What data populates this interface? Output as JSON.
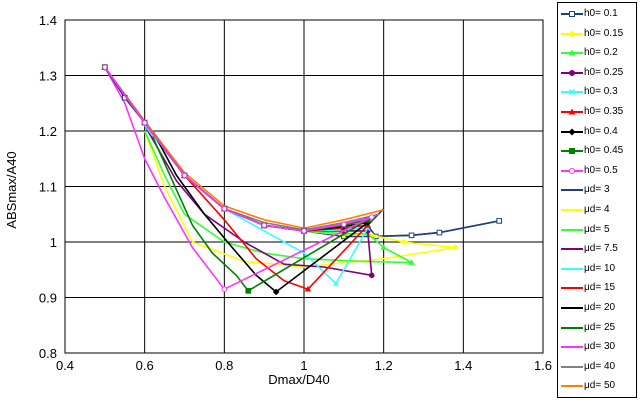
{
  "chart_data": {
    "type": "line",
    "title": "",
    "xlabel": "Dmax/D40",
    "ylabel": "ABSmax/A40",
    "xlim": [
      0.4,
      1.6
    ],
    "ylim": [
      0.8,
      1.4
    ],
    "xticks": [
      0.4,
      0.6,
      0.8,
      1,
      1.2,
      1.4,
      1.6
    ],
    "yticks": [
      0.8,
      0.9,
      1,
      1.1,
      1.2,
      1.3,
      1.4
    ],
    "xtick_labels": [
      "0.4",
      "0.6",
      "0.8",
      "1",
      "1.2",
      "1.4",
      "1.6"
    ],
    "ytick_labels": [
      "0.8",
      "0.9",
      "1",
      "1.1",
      "1.2",
      "1.3",
      "1.4"
    ],
    "grid": true,
    "legend_position": "right",
    "series": [
      {
        "name": "h0= 0.1",
        "color": "#1f3f7f",
        "marker": "square-open",
        "points": [
          [
            0.5,
            1.315
          ],
          [
            0.55,
            1.26
          ],
          [
            0.6,
            1.215
          ],
          [
            0.7,
            1.12
          ],
          [
            0.8,
            1.06
          ],
          [
            0.9,
            1.03
          ],
          [
            1.0,
            1.02
          ],
          [
            1.1,
            1.01
          ],
          [
            1.18,
            1.01
          ],
          [
            1.27,
            1.012
          ],
          [
            1.34,
            1.017
          ],
          [
            1.49,
            1.038
          ]
        ]
      },
      {
        "name": "h0= 0.15",
        "color": "#ffff00",
        "marker": "diamond",
        "points": [
          [
            0.5,
            1.315
          ],
          [
            0.6,
            1.215
          ],
          [
            0.7,
            1.12
          ],
          [
            0.8,
            1.06
          ],
          [
            0.9,
            1.03
          ],
          [
            1.0,
            1.02
          ],
          [
            1.1,
            1.013
          ],
          [
            1.17,
            1.012
          ],
          [
            1.25,
            1.0
          ],
          [
            1.38,
            0.99
          ]
        ]
      },
      {
        "name": "h0= 0.2",
        "color": "#33ff33",
        "marker": "triangle",
        "points": [
          [
            0.5,
            1.315
          ],
          [
            0.6,
            1.215
          ],
          [
            0.7,
            1.12
          ],
          [
            0.8,
            1.06
          ],
          [
            0.9,
            1.03
          ],
          [
            1.0,
            1.02
          ],
          [
            1.1,
            1.015
          ],
          [
            1.16,
            1.015
          ],
          [
            1.2,
            0.99
          ],
          [
            1.27,
            0.963
          ]
        ]
      },
      {
        "name": "h0= 0.25",
        "color": "#800080",
        "marker": "circle",
        "points": [
          [
            0.5,
            1.315
          ],
          [
            0.6,
            1.215
          ],
          [
            0.7,
            1.12
          ],
          [
            0.8,
            1.06
          ],
          [
            0.9,
            1.03
          ],
          [
            1.0,
            1.02
          ],
          [
            1.1,
            1.02
          ],
          [
            1.16,
            1.02
          ],
          [
            1.17,
            0.94
          ]
        ]
      },
      {
        "name": "h0= 0.3",
        "color": "#33ffff",
        "marker": "x",
        "points": [
          [
            0.5,
            1.315
          ],
          [
            0.6,
            1.215
          ],
          [
            0.7,
            1.12
          ],
          [
            0.8,
            1.06
          ],
          [
            0.9,
            1.03
          ],
          [
            1.0,
            1.02
          ],
          [
            1.1,
            1.022
          ],
          [
            1.16,
            1.025
          ],
          [
            1.08,
            0.925
          ]
        ]
      },
      {
        "name": "h0= 0.35",
        "color": "#ff0000",
        "marker": "triangle",
        "points": [
          [
            0.5,
            1.315
          ],
          [
            0.6,
            1.215
          ],
          [
            0.7,
            1.12
          ],
          [
            0.8,
            1.06
          ],
          [
            0.9,
            1.03
          ],
          [
            1.0,
            1.02
          ],
          [
            1.1,
            1.025
          ],
          [
            1.16,
            1.03
          ],
          [
            1.01,
            0.915
          ]
        ]
      },
      {
        "name": "h0= 0.4",
        "color": "#000000",
        "marker": "diamond",
        "points": [
          [
            0.5,
            1.315
          ],
          [
            0.6,
            1.215
          ],
          [
            0.7,
            1.12
          ],
          [
            0.8,
            1.06
          ],
          [
            0.9,
            1.03
          ],
          [
            1.0,
            1.02
          ],
          [
            1.1,
            1.028
          ],
          [
            1.16,
            1.035
          ],
          [
            0.93,
            0.91
          ]
        ]
      },
      {
        "name": "h0= 0.45",
        "color": "#008000",
        "marker": "square",
        "points": [
          [
            0.5,
            1.315
          ],
          [
            0.6,
            1.215
          ],
          [
            0.7,
            1.12
          ],
          [
            0.8,
            1.06
          ],
          [
            0.9,
            1.03
          ],
          [
            1.0,
            1.02
          ],
          [
            1.1,
            1.03
          ],
          [
            1.16,
            1.04
          ],
          [
            0.86,
            0.912
          ]
        ]
      },
      {
        "name": "h0= 0.5",
        "color": "#ff33ff",
        "marker": "circle-open",
        "points": [
          [
            0.5,
            1.315
          ],
          [
            0.6,
            1.215
          ],
          [
            0.7,
            1.12
          ],
          [
            0.8,
            1.06
          ],
          [
            0.9,
            1.03
          ],
          [
            1.0,
            1.02
          ],
          [
            1.1,
            1.032
          ],
          [
            1.17,
            1.045
          ],
          [
            0.8,
            0.915
          ]
        ]
      },
      {
        "name": "μd= 3",
        "color": "#1f3f7f",
        "marker": "none",
        "points": [
          [
            1.2,
            1.06
          ],
          [
            1.16,
            1.03
          ],
          [
            1.18,
            1.01
          ],
          [
            1.27,
            1.012
          ],
          [
            1.34,
            1.017
          ],
          [
            1.49,
            1.038
          ]
        ]
      },
      {
        "name": "μd= 4",
        "color": "#ffff00",
        "marker": "none",
        "points": [
          [
            0.6,
            1.2
          ],
          [
            0.65,
            1.1
          ],
          [
            0.72,
            1.0
          ],
          [
            0.85,
            0.965
          ],
          [
            1.0,
            0.955
          ],
          [
            1.2,
            0.97
          ],
          [
            1.38,
            0.99
          ]
        ]
      },
      {
        "name": "μd= 5",
        "color": "#33ff33",
        "marker": "none",
        "points": [
          [
            0.6,
            1.2
          ],
          [
            0.65,
            1.12
          ],
          [
            0.7,
            1.05
          ],
          [
            0.8,
            1.0
          ],
          [
            0.9,
            0.98
          ],
          [
            1.0,
            0.97
          ],
          [
            1.15,
            0.965
          ],
          [
            1.27,
            0.963
          ]
        ]
      },
      {
        "name": "μd= 7.5",
        "color": "#800080",
        "marker": "none",
        "points": [
          [
            0.6,
            1.21
          ],
          [
            0.68,
            1.11
          ],
          [
            0.75,
            1.05
          ],
          [
            0.85,
            1.0
          ],
          [
            0.95,
            0.96
          ],
          [
            1.05,
            0.955
          ],
          [
            1.17,
            0.94
          ]
        ]
      },
      {
        "name": "μd= 10",
        "color": "#33ffff",
        "marker": "none",
        "points": [
          [
            0.6,
            1.21
          ],
          [
            0.7,
            1.12
          ],
          [
            0.8,
            1.06
          ],
          [
            0.9,
            1.02
          ],
          [
            1.0,
            0.98
          ],
          [
            1.08,
            0.925
          ]
        ]
      },
      {
        "name": "μd= 15",
        "color": "#ff0000",
        "marker": "none",
        "points": [
          [
            0.62,
            1.2
          ],
          [
            0.7,
            1.12
          ],
          [
            0.8,
            1.04
          ],
          [
            0.88,
            0.97
          ],
          [
            0.95,
            0.93
          ],
          [
            1.01,
            0.915
          ]
        ]
      },
      {
        "name": "μd= 20",
        "color": "#000000",
        "marker": "none",
        "points": [
          [
            0.62,
            1.2
          ],
          [
            0.68,
            1.12
          ],
          [
            0.75,
            1.05
          ],
          [
            0.82,
            0.99
          ],
          [
            0.88,
            0.94
          ],
          [
            0.93,
            0.91
          ]
        ]
      },
      {
        "name": "μd= 25",
        "color": "#008000",
        "marker": "none",
        "points": [
          [
            0.62,
            1.19
          ],
          [
            0.67,
            1.11
          ],
          [
            0.72,
            1.03
          ],
          [
            0.77,
            0.98
          ],
          [
            0.83,
            0.94
          ],
          [
            0.86,
            0.912
          ]
        ]
      },
      {
        "name": "μd= 30",
        "color": "#ff33ff",
        "marker": "none",
        "points": [
          [
            0.5,
            1.315
          ],
          [
            0.55,
            1.25
          ],
          [
            0.6,
            1.15
          ],
          [
            0.65,
            1.08
          ],
          [
            0.72,
            0.99
          ],
          [
            0.8,
            0.915
          ]
        ]
      },
      {
        "name": "μd= 40",
        "color": "#808080",
        "marker": "none",
        "points": [
          [
            0.5,
            1.315
          ],
          [
            0.6,
            1.215
          ],
          [
            0.7,
            1.12
          ],
          [
            0.8,
            1.06
          ],
          [
            0.9,
            1.035
          ],
          [
            1.0,
            1.022
          ],
          [
            1.1,
            1.035
          ],
          [
            1.19,
            1.05
          ]
        ]
      },
      {
        "name": "μd= 50",
        "color": "#ff8000",
        "marker": "none",
        "points": [
          [
            0.5,
            1.315
          ],
          [
            0.6,
            1.218
          ],
          [
            0.7,
            1.125
          ],
          [
            0.8,
            1.065
          ],
          [
            0.9,
            1.04
          ],
          [
            1.0,
            1.025
          ],
          [
            1.1,
            1.04
          ],
          [
            1.2,
            1.058
          ]
        ]
      }
    ]
  }
}
